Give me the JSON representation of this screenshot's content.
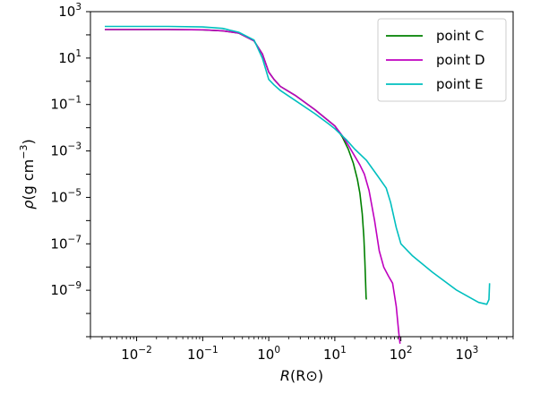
{
  "chart_data": {
    "type": "line",
    "title": "",
    "x_scale": "log",
    "y_scale": "log",
    "xlim": [
      0.002,
      5000
    ],
    "ylim": [
      1e-11,
      1000
    ],
    "grid": false,
    "legend_position": "top-right",
    "xlabel": {
      "symbol": "R",
      "unit": "(R⊙)"
    },
    "ylabel": {
      "symbol": "ρ",
      "unit": "(g cm",
      "unit_sup": "−3",
      "unit_close": ")"
    },
    "x_ticks": [
      {
        "value": 0.01,
        "base": "10",
        "exp": "−2"
      },
      {
        "value": 0.1,
        "base": "10",
        "exp": "−1"
      },
      {
        "value": 1,
        "base": "10",
        "exp": "0"
      },
      {
        "value": 10,
        "base": "10",
        "exp": "1"
      },
      {
        "value": 100,
        "base": "10",
        "exp": "2"
      },
      {
        "value": 1000,
        "base": "10",
        "exp": "3"
      }
    ],
    "y_ticks": [
      {
        "value": 1e-09,
        "base": "10",
        "exp": "−9"
      },
      {
        "value": 1e-07,
        "base": "10",
        "exp": "−7"
      },
      {
        "value": 1e-05,
        "base": "10",
        "exp": "−5"
      },
      {
        "value": 0.001,
        "base": "10",
        "exp": "−3"
      },
      {
        "value": 0.1,
        "base": "10",
        "exp": "−1"
      },
      {
        "value": 10,
        "base": "10",
        "exp": "1"
      },
      {
        "value": 1000,
        "base": "10",
        "exp": "3"
      }
    ],
    "series": [
      {
        "name": "point C",
        "color": "#008000",
        "x": [
          0.0033,
          0.03,
          0.1,
          0.2,
          0.35,
          0.6,
          0.8,
          1.0,
          1.2,
          1.5,
          2.5,
          5,
          8,
          10,
          13,
          16,
          19,
          22,
          24,
          26,
          27.5,
          28.5,
          29.3,
          29.7,
          30
        ],
        "y": [
          170,
          170,
          165,
          150,
          120,
          55,
          15,
          2.5,
          1.2,
          0.6,
          0.25,
          0.06,
          0.02,
          0.012,
          0.004,
          0.0012,
          0.0003,
          6e-05,
          1.5e-05,
          2e-06,
          2e-07,
          2e-08,
          2e-09,
          5e-10,
          4e-10
        ]
      },
      {
        "name": "point D",
        "color": "#bf00bf",
        "x": [
          0.0033,
          0.03,
          0.1,
          0.2,
          0.35,
          0.6,
          0.8,
          1.0,
          1.2,
          1.5,
          2.5,
          5,
          8,
          10,
          13,
          16,
          20,
          24,
          28,
          33,
          40,
          47,
          55,
          65,
          75,
          85,
          93,
          97
        ],
        "y": [
          170,
          170,
          165,
          150,
          120,
          55,
          15,
          2.5,
          1.2,
          0.6,
          0.25,
          0.06,
          0.02,
          0.012,
          0.0045,
          0.0018,
          0.0006,
          0.00025,
          0.0001,
          2e-05,
          1e-06,
          5e-08,
          1e-08,
          4e-09,
          2e-09,
          2e-10,
          1.5e-11,
          5e-12
        ]
      },
      {
        "name": "point E",
        "color": "#00bfbf",
        "x": [
          0.0033,
          0.03,
          0.1,
          0.2,
          0.35,
          0.6,
          0.8,
          1.0,
          1.2,
          1.5,
          2.5,
          5,
          8,
          10,
          15,
          20,
          30,
          45,
          60,
          70,
          85,
          100,
          150,
          300,
          700,
          1500,
          2000,
          2150,
          2200
        ],
        "y": [
          230,
          230,
          220,
          190,
          130,
          60,
          10,
          1.2,
          0.7,
          0.4,
          0.15,
          0.04,
          0.015,
          0.009,
          0.003,
          0.0012,
          0.0004,
          8e-05,
          2.5e-05,
          6e-06,
          5e-07,
          1e-07,
          3e-08,
          6e-09,
          1e-09,
          3e-10,
          2.5e-10,
          4e-10,
          2e-09
        ]
      }
    ]
  }
}
